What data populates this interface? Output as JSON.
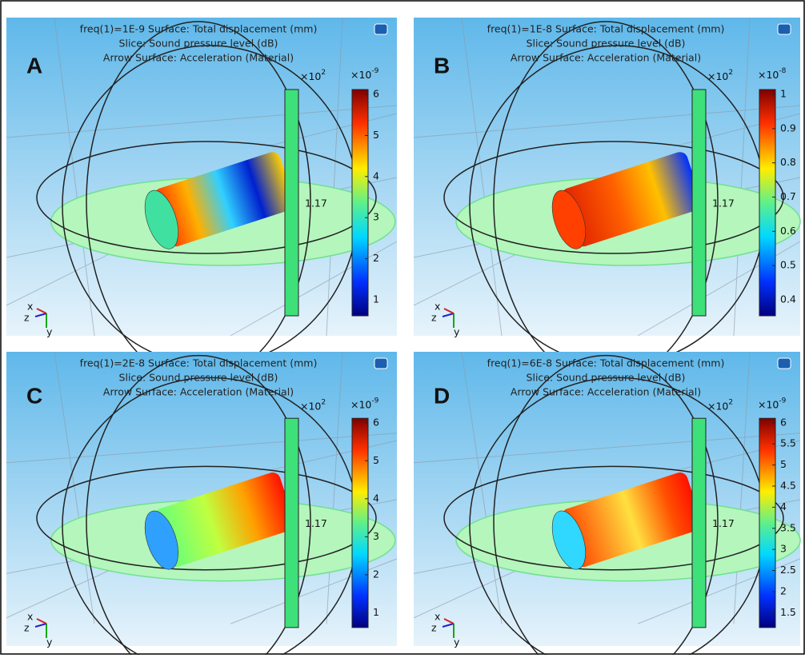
{
  "panels": [
    {
      "label": "A",
      "lines": [
        "freq(1)=1E-9   Surface: Total displacement (mm)",
        "Slice: Sound pressure level (dB)",
        "Arrow Surface: Acceleration (Material)"
      ],
      "slice_scale": {
        "base": "×10",
        "exp": "2"
      },
      "slice_value": "1.17",
      "colorbar_scale": {
        "base": "×10",
        "exp": "-9"
      },
      "colorbar_ticks": [
        "6",
        "5",
        "4",
        "3",
        "2",
        "1"
      ],
      "axes": [
        "x",
        "z",
        "y"
      ]
    },
    {
      "label": "B",
      "lines": [
        "freq(1)=1E-8   Surface: Total displacement (mm)",
        "Slice: Sound pressure level (dB)",
        "Arrow Surface: Acceleration (Material)"
      ],
      "slice_scale": {
        "base": "×10",
        "exp": "2"
      },
      "slice_value": "1.17",
      "colorbar_scale": {
        "base": "×10",
        "exp": "-8"
      },
      "colorbar_ticks": [
        "1",
        "0.9",
        "0.8",
        "0.7",
        "0.6",
        "0.5",
        "0.4"
      ],
      "axes": [
        "x",
        "z",
        "y"
      ]
    },
    {
      "label": "C",
      "lines": [
        "freq(1)=2E-8   Surface: Total displacement (mm)",
        "Slice: Sound pressure level (dB)",
        "Arrow Surface: Acceleration (Material)"
      ],
      "slice_scale": {
        "base": "×10",
        "exp": "2"
      },
      "slice_value": "1.17",
      "colorbar_scale": {
        "base": "×10",
        "exp": "-9"
      },
      "colorbar_ticks": [
        "6",
        "5",
        "4",
        "3",
        "2",
        "1"
      ],
      "axes": [
        "x",
        "z",
        "y"
      ]
    },
    {
      "label": "D",
      "lines": [
        "freq(1)=6E-8   Surface: Total displacement (mm)",
        "Slice: Sound pressure level (dB)",
        "Arrow Surface: Acceleration (Material)"
      ],
      "slice_scale": {
        "base": "×10",
        "exp": "2"
      },
      "slice_value": "1.17",
      "colorbar_scale": {
        "base": "×10",
        "exp": "-9"
      },
      "colorbar_ticks": [
        "6",
        "5.5",
        "5",
        "4.5",
        "4",
        "3.5",
        "3",
        "2.5",
        "2",
        "1.5"
      ],
      "axes": [
        "x",
        "z",
        "y"
      ]
    }
  ]
}
